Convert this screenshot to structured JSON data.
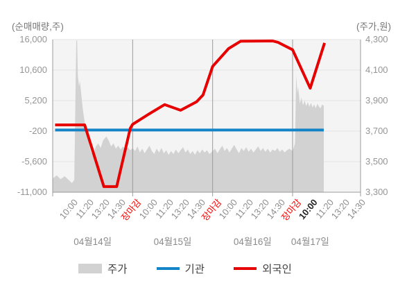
{
  "chart_data": {
    "type": "area+line",
    "left_axis": {
      "title": "(순매매량,주)",
      "unit": "주",
      "max": 16000,
      "min": -11000,
      "ticks": [
        16000,
        10600,
        5200,
        -200,
        -5600,
        -11000
      ],
      "tick_labels": [
        "16,000",
        "10,600",
        "5,200",
        "-200",
        "-5,600",
        "-11,000"
      ]
    },
    "right_axis": {
      "title": "(주가,원)",
      "unit": "원",
      "max": 4300,
      "min": 3300,
      "ticks": [
        4300,
        4100,
        3900,
        3700,
        3500,
        3300
      ],
      "tick_labels": [
        "4,300",
        "4,100",
        "3,900",
        "3,700",
        "3,500",
        "3,300"
      ]
    },
    "x_axis": {
      "day_separators_t": [
        1,
        2,
        3
      ],
      "labels": [
        {
          "t": 0.2,
          "text": "10:00",
          "style": "time"
        },
        {
          "t": 0.4,
          "text": "11:20",
          "style": "time"
        },
        {
          "t": 0.6,
          "text": "13:20",
          "style": "time"
        },
        {
          "t": 0.8,
          "text": "14:30",
          "style": "time"
        },
        {
          "t": 1.0,
          "text": "장마감",
          "style": "close"
        },
        {
          "t": 1.2,
          "text": "10:00",
          "style": "time"
        },
        {
          "t": 1.4,
          "text": "11:20",
          "style": "time"
        },
        {
          "t": 1.6,
          "text": "13:20",
          "style": "time"
        },
        {
          "t": 1.8,
          "text": "14:30",
          "style": "time"
        },
        {
          "t": 2.0,
          "text": "장마감",
          "style": "close"
        },
        {
          "t": 2.2,
          "text": "10:00",
          "style": "time"
        },
        {
          "t": 2.4,
          "text": "11:20",
          "style": "time"
        },
        {
          "t": 2.6,
          "text": "13:20",
          "style": "time"
        },
        {
          "t": 2.8,
          "text": "14:30",
          "style": "time"
        },
        {
          "t": 3.0,
          "text": "장마감",
          "style": "close"
        },
        {
          "t": 3.2,
          "text": "10:00",
          "style": "emph"
        },
        {
          "t": 3.4,
          "text": "11:20",
          "style": "time"
        },
        {
          "t": 3.6,
          "text": "13:20",
          "style": "time"
        },
        {
          "t": 3.8,
          "text": "14:30",
          "style": "time"
        }
      ],
      "dates": [
        {
          "t": 0.5,
          "text": "04월14일"
        },
        {
          "t": 1.5,
          "text": "04월15일"
        },
        {
          "t": 2.5,
          "text": "04월16일"
        },
        {
          "t": 3.22,
          "text": "04월17일"
        }
      ]
    },
    "series": [
      {
        "name": "주가",
        "type": "area",
        "axis": "right",
        "color": "#d2d2d2",
        "points": [
          [
            0.0,
            3390
          ],
          [
            0.05,
            3410
          ],
          [
            0.1,
            3385
          ],
          [
            0.15,
            3405
          ],
          [
            0.2,
            3380
          ],
          [
            0.24,
            3360
          ],
          [
            0.27,
            3380
          ],
          [
            0.295,
            4290
          ],
          [
            0.305,
            4300
          ],
          [
            0.315,
            4060
          ],
          [
            0.33,
            3990
          ],
          [
            0.34,
            4030
          ],
          [
            0.36,
            3930
          ],
          [
            0.38,
            3830
          ],
          [
            0.4,
            3760
          ],
          [
            0.42,
            3700
          ],
          [
            0.45,
            3620
          ],
          [
            0.48,
            3560
          ],
          [
            0.51,
            3545
          ],
          [
            0.54,
            3600
          ],
          [
            0.57,
            3620
          ],
          [
            0.6,
            3590
          ],
          [
            0.63,
            3640
          ],
          [
            0.67,
            3665
          ],
          [
            0.7,
            3640
          ],
          [
            0.73,
            3600
          ],
          [
            0.76,
            3620
          ],
          [
            0.79,
            3585
          ],
          [
            0.82,
            3605
          ],
          [
            0.85,
            3580
          ],
          [
            0.88,
            3600
          ],
          [
            0.91,
            3575
          ],
          [
            0.94,
            3595
          ],
          [
            0.97,
            3575
          ],
          [
            1.0,
            3590
          ],
          [
            1.03,
            3570
          ],
          [
            1.06,
            3600
          ],
          [
            1.09,
            3560
          ],
          [
            1.12,
            3585
          ],
          [
            1.15,
            3555
          ],
          [
            1.18,
            3580
          ],
          [
            1.21,
            3605
          ],
          [
            1.24,
            3570
          ],
          [
            1.27,
            3550
          ],
          [
            1.3,
            3585
          ],
          [
            1.33,
            3560
          ],
          [
            1.36,
            3590
          ],
          [
            1.39,
            3555
          ],
          [
            1.42,
            3575
          ],
          [
            1.45,
            3545
          ],
          [
            1.48,
            3570
          ],
          [
            1.51,
            3550
          ],
          [
            1.54,
            3580
          ],
          [
            1.57,
            3555
          ],
          [
            1.6,
            3575
          ],
          [
            1.63,
            3595
          ],
          [
            1.66,
            3560
          ],
          [
            1.69,
            3580
          ],
          [
            1.72,
            3550
          ],
          [
            1.75,
            3570
          ],
          [
            1.78,
            3545
          ],
          [
            1.81,
            3575
          ],
          [
            1.84,
            3555
          ],
          [
            1.87,
            3580
          ],
          [
            1.9,
            3560
          ],
          [
            1.93,
            3575
          ],
          [
            1.96,
            3550
          ],
          [
            2.0,
            3570
          ],
          [
            2.03,
            3585
          ],
          [
            2.06,
            3555
          ],
          [
            2.09,
            3580
          ],
          [
            2.12,
            3605
          ],
          [
            2.15,
            3570
          ],
          [
            2.18,
            3590
          ],
          [
            2.21,
            3560
          ],
          [
            2.24,
            3585
          ],
          [
            2.27,
            3610
          ],
          [
            2.3,
            3580
          ],
          [
            2.33,
            3555
          ],
          [
            2.36,
            3590
          ],
          [
            2.39,
            3570
          ],
          [
            2.42,
            3595
          ],
          [
            2.45,
            3565
          ],
          [
            2.48,
            3585
          ],
          [
            2.51,
            3560
          ],
          [
            2.54,
            3580
          ],
          [
            2.57,
            3600
          ],
          [
            2.6,
            3570
          ],
          [
            2.63,
            3590
          ],
          [
            2.66,
            3565
          ],
          [
            2.69,
            3585
          ],
          [
            2.72,
            3560
          ],
          [
            2.75,
            3580
          ],
          [
            2.78,
            3570
          ],
          [
            2.81,
            3590
          ],
          [
            2.84,
            3565
          ],
          [
            2.87,
            3580
          ],
          [
            2.9,
            3560
          ],
          [
            2.93,
            3575
          ],
          [
            2.96,
            3585
          ],
          [
            3.0,
            3570
          ],
          [
            3.03,
            3620
          ],
          [
            3.045,
            4070
          ],
          [
            3.06,
            3950
          ],
          [
            3.07,
            3990
          ],
          [
            3.09,
            3880
          ],
          [
            3.11,
            3920
          ],
          [
            3.13,
            3870
          ],
          [
            3.15,
            3900
          ],
          [
            3.17,
            3865
          ],
          [
            3.19,
            3890
          ],
          [
            3.21,
            3860
          ],
          [
            3.23,
            3885
          ],
          [
            3.25,
            3855
          ],
          [
            3.27,
            3875
          ],
          [
            3.29,
            3850
          ],
          [
            3.31,
            3880
          ],
          [
            3.33,
            3860
          ],
          [
            3.35,
            3850
          ],
          [
            3.37,
            3875
          ],
          [
            3.39,
            3865
          ]
        ]
      },
      {
        "name": "기관",
        "type": "line",
        "axis": "left",
        "color": "#1484c8",
        "width": 4,
        "points": [
          [
            0.03,
            0
          ],
          [
            3.39,
            0
          ]
        ]
      },
      {
        "name": "외국인",
        "type": "line",
        "axis": "left",
        "color": "#e60000",
        "width": 4,
        "points": [
          [
            0.03,
            900
          ],
          [
            0.4,
            900
          ],
          [
            0.64,
            -10000
          ],
          [
            0.8,
            -10000
          ],
          [
            0.97,
            300
          ],
          [
            1.0,
            1000
          ],
          [
            1.2,
            2800
          ],
          [
            1.4,
            4500
          ],
          [
            1.6,
            3500
          ],
          [
            1.8,
            5000
          ],
          [
            1.88,
            6200
          ],
          [
            2.0,
            11250
          ],
          [
            2.2,
            14400
          ],
          [
            2.35,
            15700
          ],
          [
            2.75,
            15750
          ],
          [
            2.82,
            15500
          ],
          [
            3.0,
            14200
          ],
          [
            3.22,
            7400
          ],
          [
            3.4,
            15400
          ]
        ]
      }
    ],
    "colors": {
      "plot_background": "#f4f4f4",
      "grid_line": "#e3e3e3",
      "axis_line": "#9b9b9b",
      "day_separator": "#9b9b9b"
    }
  },
  "legend": {
    "items": [
      {
        "label": "주가",
        "swatch": "area",
        "color": "#d2d2d2"
      },
      {
        "label": "기관",
        "swatch": "line",
        "color": "#1484c8"
      },
      {
        "label": "외국인",
        "swatch": "line",
        "color": "#e60000"
      }
    ]
  }
}
